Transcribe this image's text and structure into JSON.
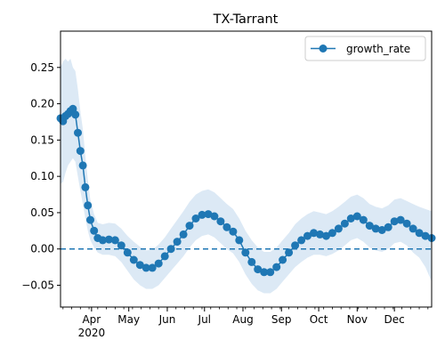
{
  "chart_data": {
    "type": "line",
    "title": "TX-Tarrant",
    "xlabel": "",
    "ylabel": "",
    "x_start": "2020-03-07",
    "x_end": "2020-12-31",
    "ylim": [
      -0.08,
      0.3
    ],
    "yticks": [
      -0.05,
      0.0,
      0.05,
      0.1,
      0.15,
      0.2,
      0.25
    ],
    "ytick_labels": [
      "−0.05",
      "0.00",
      "0.05",
      "0.10",
      "0.15",
      "0.20",
      "0.25"
    ],
    "xticks": [
      {
        "date": "2020-04-01",
        "label": "Apr",
        "sublabel": "2020"
      },
      {
        "date": "2020-05-01",
        "label": "May"
      },
      {
        "date": "2020-06-01",
        "label": "Jun"
      },
      {
        "date": "2020-07-01",
        "label": "Jul"
      },
      {
        "date": "2020-08-01",
        "label": "Aug"
      },
      {
        "date": "2020-09-01",
        "label": "Sep"
      },
      {
        "date": "2020-10-01",
        "label": "Oct"
      },
      {
        "date": "2020-11-01",
        "label": "Nov"
      },
      {
        "date": "2020-12-01",
        "label": "Dec"
      }
    ],
    "reference_line": {
      "y": 0.0,
      "style": "dashed"
    },
    "legend": {
      "position": "top-right",
      "entries": [
        "growth_rate"
      ]
    },
    "grid": false,
    "colors": {
      "series": "#1f77b4",
      "band": "#dce9f5"
    },
    "series": [
      {
        "name": "growth_rate",
        "marker": "circle",
        "points": [
          [
            "2020-03-07",
            0.18
          ],
          [
            "2020-03-09",
            0.176
          ],
          [
            "2020-03-11",
            0.183
          ],
          [
            "2020-03-13",
            0.186
          ],
          [
            "2020-03-15",
            0.19
          ],
          [
            "2020-03-17",
            0.193
          ],
          [
            "2020-03-19",
            0.185
          ],
          [
            "2020-03-21",
            0.16
          ],
          [
            "2020-03-23",
            0.135
          ],
          [
            "2020-03-25",
            0.115
          ],
          [
            "2020-03-27",
            0.085
          ],
          [
            "2020-03-29",
            0.06
          ],
          [
            "2020-03-31",
            0.04
          ],
          [
            "2020-04-03",
            0.025
          ],
          [
            "2020-04-06",
            0.015
          ],
          [
            "2020-04-10",
            0.012
          ],
          [
            "2020-04-15",
            0.013
          ],
          [
            "2020-04-20",
            0.012
          ],
          [
            "2020-04-25",
            0.005
          ],
          [
            "2020-04-30",
            -0.005
          ],
          [
            "2020-05-05",
            -0.015
          ],
          [
            "2020-05-10",
            -0.022
          ],
          [
            "2020-05-15",
            -0.026
          ],
          [
            "2020-05-20",
            -0.026
          ],
          [
            "2020-05-25",
            -0.02
          ],
          [
            "2020-05-30",
            -0.01
          ],
          [
            "2020-06-04",
            0.0
          ],
          [
            "2020-06-09",
            0.01
          ],
          [
            "2020-06-14",
            0.02
          ],
          [
            "2020-06-19",
            0.032
          ],
          [
            "2020-06-24",
            0.042
          ],
          [
            "2020-06-29",
            0.047
          ],
          [
            "2020-07-04",
            0.048
          ],
          [
            "2020-07-09",
            0.045
          ],
          [
            "2020-07-14",
            0.038
          ],
          [
            "2020-07-19",
            0.03
          ],
          [
            "2020-07-24",
            0.024
          ],
          [
            "2020-07-29",
            0.012
          ],
          [
            "2020-08-03",
            -0.005
          ],
          [
            "2020-08-08",
            -0.018
          ],
          [
            "2020-08-13",
            -0.028
          ],
          [
            "2020-08-18",
            -0.032
          ],
          [
            "2020-08-23",
            -0.032
          ],
          [
            "2020-08-28",
            -0.025
          ],
          [
            "2020-09-02",
            -0.015
          ],
          [
            "2020-09-07",
            -0.005
          ],
          [
            "2020-09-12",
            0.005
          ],
          [
            "2020-09-17",
            0.012
          ],
          [
            "2020-09-22",
            0.018
          ],
          [
            "2020-09-27",
            0.022
          ],
          [
            "2020-10-02",
            0.02
          ],
          [
            "2020-10-07",
            0.018
          ],
          [
            "2020-10-12",
            0.022
          ],
          [
            "2020-10-17",
            0.028
          ],
          [
            "2020-10-22",
            0.035
          ],
          [
            "2020-10-27",
            0.042
          ],
          [
            "2020-11-01",
            0.045
          ],
          [
            "2020-11-06",
            0.04
          ],
          [
            "2020-11-11",
            0.032
          ],
          [
            "2020-11-16",
            0.028
          ],
          [
            "2020-11-21",
            0.026
          ],
          [
            "2020-11-26",
            0.03
          ],
          [
            "2020-12-01",
            0.038
          ],
          [
            "2020-12-06",
            0.04
          ],
          [
            "2020-12-11",
            0.035
          ],
          [
            "2020-12-16",
            0.028
          ],
          [
            "2020-12-21",
            0.022
          ],
          [
            "2020-12-26",
            0.018
          ],
          [
            "2020-12-31",
            0.015
          ]
        ],
        "band_lower": [
          0.09,
          0.092,
          0.105,
          0.115,
          0.12,
          0.125,
          0.12,
          0.1,
          0.08,
          0.062,
          0.042,
          0.025,
          0.012,
          0.002,
          -0.005,
          -0.008,
          -0.008,
          -0.01,
          -0.018,
          -0.03,
          -0.042,
          -0.05,
          -0.055,
          -0.055,
          -0.05,
          -0.04,
          -0.03,
          -0.02,
          -0.01,
          0.002,
          0.012,
          0.018,
          0.02,
          0.016,
          0.008,
          0.0,
          -0.006,
          -0.018,
          -0.035,
          -0.048,
          -0.057,
          -0.061,
          -0.061,
          -0.055,
          -0.045,
          -0.035,
          -0.025,
          -0.018,
          -0.012,
          -0.008,
          -0.008,
          -0.01,
          -0.007,
          -0.002,
          0.005,
          0.012,
          0.015,
          0.01,
          0.002,
          -0.002,
          -0.004,
          0.0,
          0.008,
          0.01,
          0.005,
          -0.005,
          -0.012,
          -0.025,
          -0.045
        ],
        "band_upper": [
          0.25,
          0.258,
          0.262,
          0.258,
          0.262,
          0.25,
          0.245,
          0.22,
          0.19,
          0.165,
          0.128,
          0.095,
          0.068,
          0.048,
          0.036,
          0.034,
          0.036,
          0.035,
          0.028,
          0.018,
          0.01,
          0.003,
          -0.002,
          -0.001,
          0.006,
          0.016,
          0.028,
          0.04,
          0.052,
          0.065,
          0.075,
          0.08,
          0.082,
          0.078,
          0.07,
          0.062,
          0.055,
          0.042,
          0.025,
          0.012,
          0.002,
          -0.004,
          -0.004,
          0.002,
          0.012,
          0.022,
          0.034,
          0.042,
          0.048,
          0.052,
          0.05,
          0.048,
          0.052,
          0.058,
          0.065,
          0.072,
          0.075,
          0.07,
          0.062,
          0.058,
          0.056,
          0.06,
          0.068,
          0.07,
          0.066,
          0.062,
          0.058,
          0.055,
          0.052
        ]
      }
    ]
  }
}
